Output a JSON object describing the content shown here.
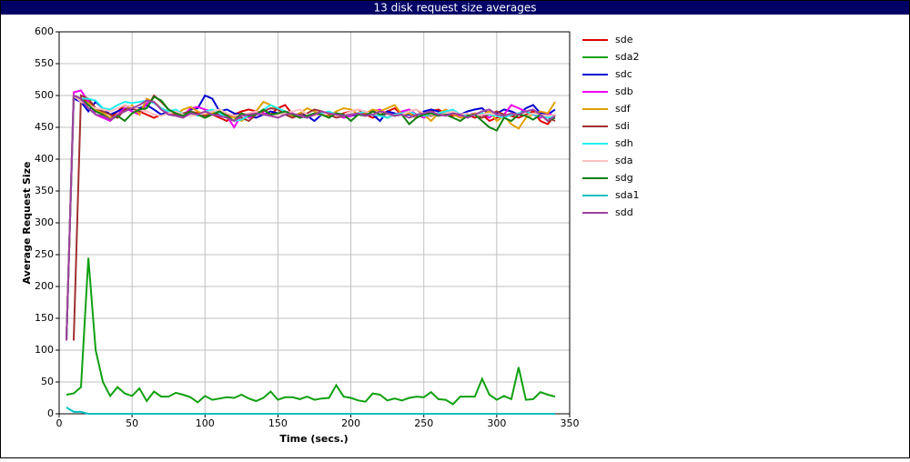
{
  "chart_data": {
    "type": "line",
    "title": "13 disk request size averages",
    "xlabel": "Time (secs.)",
    "ylabel": "Average Request Size",
    "x": [
      5,
      10,
      15,
      20,
      25,
      30,
      35,
      40,
      45,
      50,
      55,
      60,
      65,
      70,
      75,
      80,
      85,
      90,
      95,
      100,
      105,
      110,
      115,
      120,
      125,
      130,
      135,
      140,
      145,
      150,
      155,
      160,
      165,
      170,
      175,
      180,
      185,
      190,
      195,
      200,
      205,
      210,
      215,
      220,
      225,
      230,
      235,
      240,
      245,
      250,
      255,
      260,
      265,
      270,
      275,
      280,
      285,
      290,
      295,
      300,
      305,
      310,
      315,
      320,
      325,
      330,
      335,
      340
    ],
    "xlim": [
      0,
      350
    ],
    "xticks": [
      0,
      50,
      100,
      150,
      200,
      250,
      300,
      350
    ],
    "ylim": [
      0,
      600
    ],
    "yticks": [
      0,
      50,
      100,
      150,
      200,
      250,
      300,
      350,
      400,
      450,
      500,
      550,
      600
    ],
    "grid": true,
    "legend": "right",
    "series": [
      {
        "name": "sde",
        "color": "#e00000",
        "values": [
          115,
          500,
          495,
          490,
          480,
          470,
          465,
          475,
          485,
          480,
          475,
          470,
          465,
          470,
          475,
          470,
          470,
          475,
          472,
          468,
          470,
          465,
          460,
          470,
          475,
          478,
          475,
          472,
          470,
          480,
          485,
          470,
          468,
          465,
          470,
          475,
          470,
          468,
          472,
          475,
          478,
          470,
          465,
          470,
          475,
          480,
          470,
          472,
          468,
          470,
          475,
          478,
          472,
          468,
          470,
          470,
          465,
          470,
          460,
          465,
          470,
          468,
          465,
          470,
          475,
          460,
          455,
          470
        ]
      },
      {
        "name": "sda2",
        "color": "#10a010",
        "values": [
          30,
          32,
          42,
          245,
          100,
          50,
          28,
          42,
          32,
          28,
          40,
          20,
          35,
          27,
          27,
          33,
          30,
          26,
          18,
          28,
          22,
          24,
          26,
          25,
          30,
          24,
          20,
          25,
          35,
          22,
          26,
          26,
          23,
          27,
          22,
          24,
          25,
          45,
          27,
          25,
          21,
          19,
          32,
          30,
          21,
          24,
          21,
          25,
          27,
          26,
          34,
          23,
          22,
          15,
          27,
          27,
          27,
          55,
          30,
          22,
          28,
          23,
          73,
          22,
          23,
          34,
          30,
          27
        ]
      },
      {
        "name": "sdc",
        "color": "#0000d0",
        "values": [
          115,
          495,
          490,
          475,
          490,
          480,
          470,
          475,
          480,
          478,
          480,
          485,
          478,
          470,
          475,
          472,
          470,
          478,
          480,
          500,
          495,
          475,
          478,
          472,
          470,
          468,
          465,
          470,
          475,
          472,
          470,
          468,
          472,
          468,
          460,
          470,
          472,
          470,
          465,
          468,
          470,
          475,
          470,
          460,
          475,
          472,
          470,
          470,
          465,
          475,
          478,
          475,
          470,
          472,
          470,
          475,
          478,
          480,
          470,
          472,
          478,
          475,
          470,
          480,
          485,
          472,
          470,
          478
        ]
      },
      {
        "name": "sdb",
        "color": "#f000f0",
        "values": [
          115,
          505,
          508,
          490,
          470,
          465,
          460,
          470,
          480,
          475,
          470,
          488,
          490,
          478,
          472,
          470,
          468,
          480,
          482,
          478,
          475,
          470,
          468,
          450,
          470,
          465,
          470,
          472,
          468,
          470,
          475,
          472,
          465,
          468,
          470,
          472,
          470,
          470,
          465,
          468,
          472,
          470,
          475,
          478,
          470,
          470,
          475,
          478,
          470,
          465,
          470,
          472,
          475,
          470,
          468,
          470,
          472,
          470,
          465,
          475,
          470,
          485,
          480,
          475,
          470,
          465,
          472,
          468
        ]
      },
      {
        "name": "sdf",
        "color": "#e0a000",
        "values": [
          115,
          500,
          492,
          488,
          478,
          472,
          465,
          470,
          475,
          485,
          470,
          495,
          490,
          480,
          475,
          470,
          478,
          482,
          475,
          470,
          472,
          478,
          470,
          465,
          460,
          468,
          475,
          490,
          485,
          478,
          470,
          468,
          472,
          480,
          475,
          470,
          468,
          475,
          480,
          478,
          470,
          472,
          478,
          475,
          480,
          485,
          470,
          472,
          465,
          470,
          460,
          472,
          478,
          470,
          465,
          468,
          472,
          470,
          475,
          460,
          468,
          455,
          448,
          465,
          470,
          475,
          472,
          490
        ]
      },
      {
        "name": "sdi",
        "color": "#a03030",
        "values": [
          null,
          115,
          500,
          495,
          480,
          475,
          470,
          465,
          478,
          480,
          475,
          480,
          500,
          490,
          478,
          470,
          472,
          475,
          470,
          468,
          470,
          472,
          470,
          468,
          465,
          460,
          470,
          475,
          480,
          478,
          470,
          465,
          470,
          472,
          478,
          475,
          470,
          465,
          468,
          470,
          472,
          470,
          475,
          470,
          465,
          470,
          472,
          475,
          478,
          470,
          468,
          470,
          475,
          472,
          470,
          470,
          468,
          465,
          470,
          475,
          470,
          468,
          472,
          475,
          470,
          468,
          465,
          460
        ]
      },
      {
        "name": "sdh",
        "color": "#20f0f0",
        "values": [
          115,
          500,
          495,
          495,
          492,
          480,
          478,
          485,
          490,
          488,
          490,
          492,
          488,
          480,
          475,
          478,
          470,
          472,
          468,
          475,
          478,
          472,
          465,
          460,
          462,
          468,
          470,
          478,
          485,
          480,
          475,
          470,
          468,
          465,
          470,
          472,
          475,
          470,
          468,
          470,
          472,
          475,
          470,
          468,
          465,
          470,
          472,
          475,
          470,
          468,
          470,
          472,
          475,
          478,
          470,
          468,
          470,
          472,
          470,
          468,
          465,
          470,
          472,
          475,
          470,
          468,
          465,
          468
        ]
      },
      {
        "name": "sda",
        "color": "#ffc0c0",
        "values": [
          115,
          500,
          490,
          485,
          480,
          478,
          475,
          480,
          485,
          482,
          478,
          475,
          470,
          468,
          472,
          475,
          470,
          468,
          470,
          472,
          475,
          478,
          472,
          468,
          470,
          472,
          475,
          470,
          468,
          470,
          472,
          475,
          478,
          470,
          468,
          470,
          472,
          468,
          470,
          475,
          478,
          475,
          470,
          472,
          470,
          468,
          470,
          475,
          478,
          472,
          470,
          468,
          472,
          475,
          470,
          472,
          468,
          470,
          472,
          470,
          468,
          472,
          470,
          468,
          472,
          470,
          468,
          470
        ]
      },
      {
        "name": "sdg",
        "color": "#108010",
        "values": [
          115,
          500,
          495,
          485,
          475,
          470,
          462,
          468,
          460,
          472,
          478,
          480,
          498,
          492,
          478,
          472,
          468,
          475,
          470,
          465,
          470,
          475,
          468,
          460,
          472,
          468,
          470,
          478,
          470,
          472,
          475,
          470,
          465,
          468,
          472,
          470,
          465,
          472,
          470,
          460,
          470,
          468,
          475,
          470,
          472,
          468,
          470,
          455,
          465,
          470,
          472,
          468,
          470,
          465,
          460,
          468,
          470,
          460,
          450,
          445,
          465,
          460,
          470,
          468,
          462,
          470,
          460,
          465
        ]
      },
      {
        "name": "sda1",
        "color": "#00c0c0",
        "values": [
          10,
          3,
          3,
          0,
          0,
          0,
          0,
          0,
          0,
          0,
          0,
          0,
          0,
          0,
          0,
          0,
          0,
          0,
          0,
          0,
          0,
          0,
          0,
          0,
          0,
          0,
          0,
          0,
          0,
          0,
          0,
          0,
          0,
          0,
          0,
          0,
          0,
          0,
          0,
          0,
          0,
          0,
          0,
          0,
          0,
          0,
          0,
          0,
          0,
          0,
          0,
          0,
          0,
          0,
          0,
          0,
          0,
          0,
          0,
          0,
          0,
          0,
          0,
          0,
          0,
          0,
          0,
          0
        ]
      },
      {
        "name": "sdd",
        "color": "#a040a0",
        "values": [
          115,
          500,
          495,
          480,
          470,
          468,
          462,
          470,
          475,
          480,
          485,
          492,
          490,
          478,
          470,
          468,
          465,
          472,
          470,
          475,
          470,
          468,
          465,
          460,
          468,
          470,
          472,
          470,
          468,
          465,
          470,
          472,
          468,
          465,
          470,
          475,
          472,
          470,
          468,
          470,
          472,
          468,
          470,
          475,
          472,
          468,
          470,
          465,
          470,
          472,
          475,
          470,
          468,
          472,
          470,
          465,
          470,
          475,
          478,
          470,
          468,
          472,
          470,
          475,
          478,
          470,
          460,
          468
        ]
      }
    ]
  }
}
